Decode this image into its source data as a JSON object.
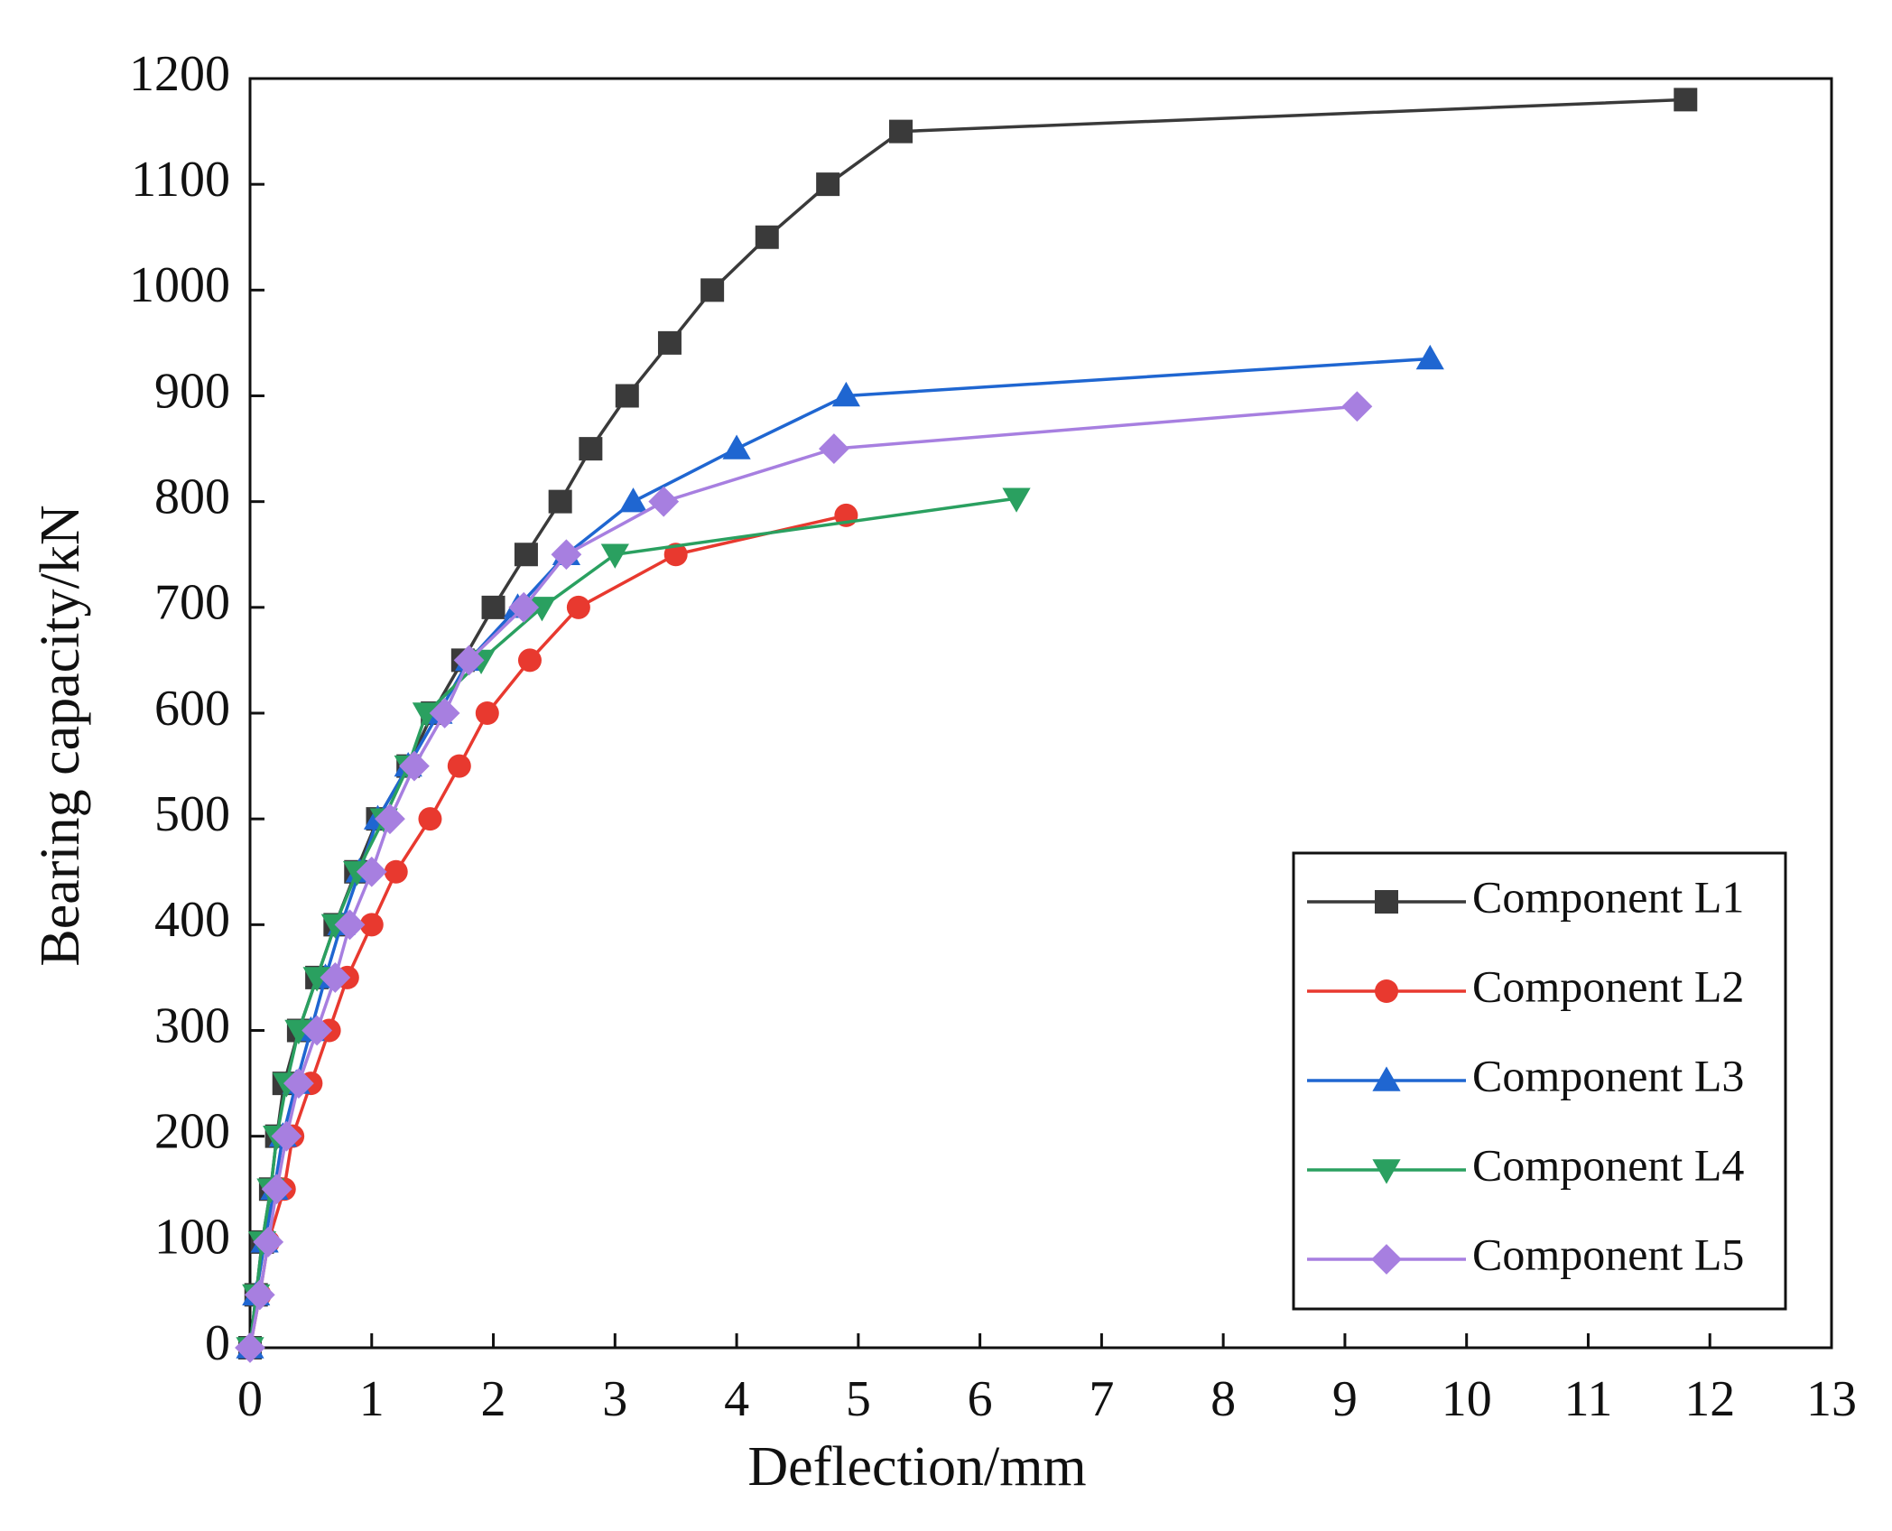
{
  "chart_data": {
    "type": "line",
    "xlabel": "Deflection/mm",
    "ylabel": "Bearing capacity/kN",
    "xlim": [
      0,
      13
    ],
    "xticks": [
      0,
      1,
      2,
      3,
      4,
      5,
      6,
      7,
      8,
      9,
      10,
      11,
      12,
      13
    ],
    "ylim": [
      0,
      1200
    ],
    "yticks": [
      0,
      100,
      200,
      300,
      400,
      500,
      600,
      700,
      800,
      900,
      1000,
      1100,
      1200
    ],
    "legend": "lower right",
    "series": [
      {
        "name": "Component L1",
        "color": "#3a3a3a",
        "marker": "square",
        "x": [
          0,
          0.05,
          0.1,
          0.17,
          0.22,
          0.28,
          0.4,
          0.55,
          0.7,
          0.87,
          1.05,
          1.3,
          1.5,
          1.75,
          2.0,
          2.27,
          2.55,
          2.8,
          3.1,
          3.45,
          3.8,
          4.25,
          4.75,
          5.35,
          11.8
        ],
        "values": [
          0,
          50,
          100,
          150,
          200,
          250,
          300,
          350,
          400,
          450,
          500,
          550,
          600,
          650,
          700,
          750,
          800,
          850,
          900,
          950,
          1000,
          1050,
          1100,
          1150,
          1180
        ]
      },
      {
        "name": "Component L2",
        "color": "#e8392f",
        "marker": "circle",
        "x": [
          0,
          0.08,
          0.15,
          0.28,
          0.35,
          0.5,
          0.65,
          0.8,
          1.0,
          1.2,
          1.48,
          1.72,
          1.95,
          2.3,
          2.7,
          3.5,
          4.9
        ],
        "values": [
          0,
          50,
          100,
          150,
          200,
          250,
          300,
          350,
          400,
          450,
          500,
          550,
          600,
          650,
          700,
          750,
          787
        ]
      },
      {
        "name": "Component L3",
        "color": "#1f66d1",
        "marker": "triangle",
        "x": [
          0,
          0.05,
          0.12,
          0.2,
          0.27,
          0.38,
          0.5,
          0.62,
          0.75,
          0.9,
          1.05,
          1.3,
          1.55,
          1.8,
          2.2,
          2.6,
          3.15,
          4.0,
          4.9,
          9.7
        ],
        "values": [
          0,
          50,
          100,
          150,
          200,
          250,
          300,
          350,
          400,
          450,
          500,
          550,
          600,
          650,
          700,
          750,
          800,
          850,
          900,
          935
        ]
      },
      {
        "name": "Component L4",
        "color": "#2aa060",
        "marker": "triangle-down",
        "x": [
          0,
          0.05,
          0.1,
          0.17,
          0.22,
          0.3,
          0.4,
          0.55,
          0.7,
          0.88,
          1.1,
          1.3,
          1.45,
          1.9,
          2.4,
          3.0,
          6.3
        ],
        "values": [
          0,
          50,
          100,
          150,
          200,
          250,
          300,
          350,
          400,
          450,
          500,
          550,
          600,
          650,
          700,
          750,
          803
        ]
      },
      {
        "name": "Component L5",
        "color": "#a77fe0",
        "marker": "diamond",
        "x": [
          0,
          0.08,
          0.15,
          0.22,
          0.3,
          0.4,
          0.55,
          0.7,
          0.82,
          1.0,
          1.15,
          1.35,
          1.6,
          1.8,
          2.25,
          2.6,
          3.4,
          4.8,
          9.1
        ],
        "values": [
          0,
          50,
          100,
          150,
          200,
          250,
          300,
          350,
          400,
          450,
          500,
          550,
          600,
          650,
          700,
          750,
          800,
          850,
          890
        ]
      }
    ]
  }
}
